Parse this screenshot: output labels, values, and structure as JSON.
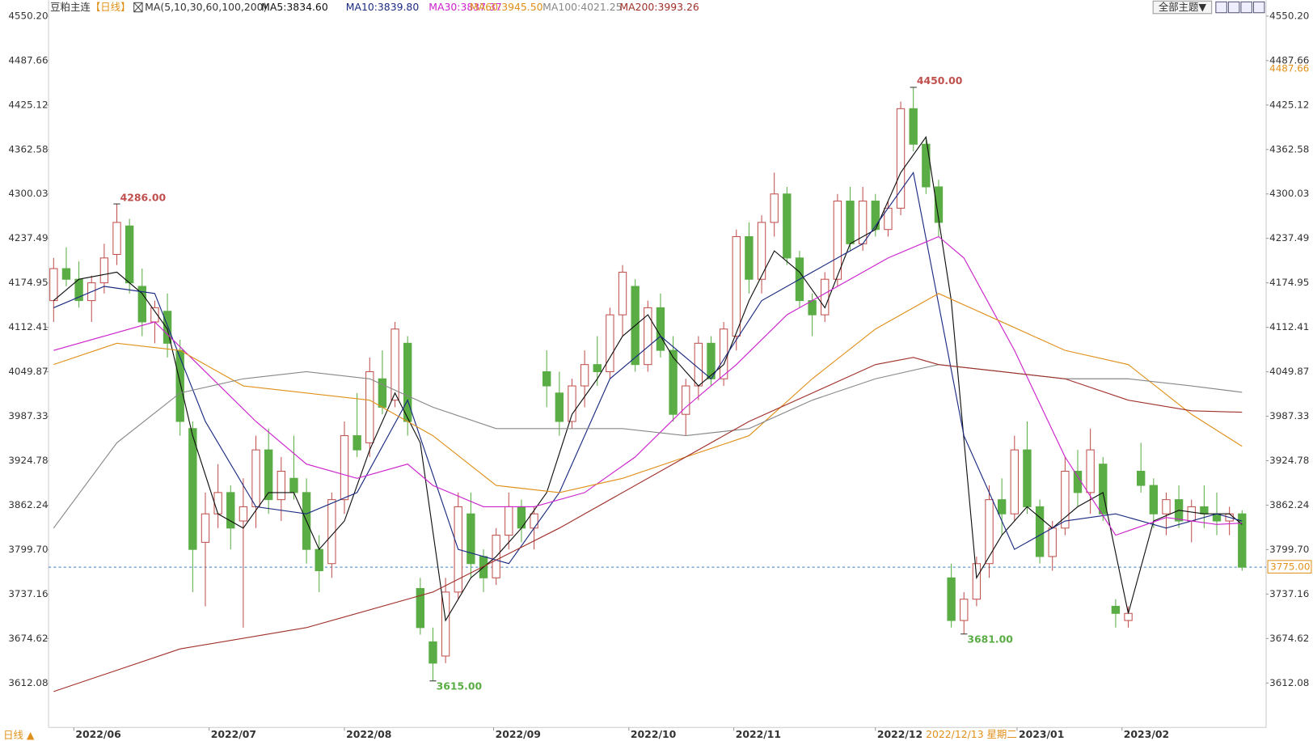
{
  "chart_data": {
    "type": "candlestick",
    "title": "豆粕主连",
    "period": "【日线】",
    "indicator": "MA(5,10,30,60,100,200)",
    "up_color": "#c0504d",
    "down_color": "#5aac44",
    "xlim": [
      -0.4,
      95.9
    ],
    "ylim": [
      3549.6,
      4572.6
    ],
    "yticks": [
      3612.08,
      3674.62,
      3737.16,
      {
        "value": 3799.7,
        "label": "3799.70"
      },
      3862.24,
      3924.78,
      3987.33,
      4049.87,
      4112.41,
      4174.95,
      4237.49,
      4300.03,
      4362.58,
      4425.12,
      4487.66,
      {
        "value": 4550.2,
        "label": "4550.20"
      }
    ],
    "xticks": [
      {
        "value": 1.6,
        "label": "2022/06"
      },
      {
        "value": 12.3,
        "label": "2022/07"
      },
      {
        "value": 23,
        "label": "2022/08"
      },
      {
        "value": 34.8,
        "label": "2022/09"
      },
      {
        "value": 45.5,
        "label": "2022/10"
      },
      {
        "value": 53.8,
        "label": "2022/11"
      },
      {
        "value": 65,
        "label": "2022/12"
      },
      {
        "value": 76.2,
        "label": "2023/01"
      },
      {
        "value": 84.5,
        "label": "2023/02"
      }
    ],
    "candles": [
      [
        4150,
        4210,
        4120,
        4195
      ],
      [
        4195,
        4225,
        4170,
        4180
      ],
      [
        4180,
        4205,
        4140,
        4150
      ],
      [
        4150,
        4185,
        4120,
        4175
      ],
      [
        4175,
        4230,
        4160,
        4210
      ],
      [
        4215,
        4286,
        4200,
        4260
      ],
      [
        4255,
        4265,
        4160,
        4175
      ],
      [
        4170,
        4195,
        4100,
        4120
      ],
      [
        4120,
        4150,
        4090,
        4140
      ],
      [
        4135,
        4160,
        4070,
        4090
      ],
      [
        4080,
        4095,
        3960,
        3980
      ],
      [
        3970,
        3980,
        3740,
        3800
      ],
      [
        3810,
        3880,
        3720,
        3850
      ],
      [
        3850,
        3920,
        3830,
        3880
      ],
      [
        3880,
        3890,
        3800,
        3830
      ],
      [
        3840,
        3900,
        3690,
        3860
      ],
      [
        3860,
        3960,
        3830,
        3940
      ],
      [
        3940,
        3970,
        3850,
        3870
      ],
      [
        3870,
        3930,
        3840,
        3910
      ],
      [
        3900,
        3960,
        3870,
        3880
      ],
      [
        3880,
        3900,
        3780,
        3800
      ],
      [
        3800,
        3820,
        3740,
        3770
      ],
      [
        3780,
        3880,
        3760,
        3870
      ],
      [
        3870,
        3980,
        3850,
        3960
      ],
      [
        3960,
        4020,
        3930,
        3940
      ],
      [
        3950,
        4070,
        3930,
        4050
      ],
      [
        4040,
        4080,
        3990,
        4000
      ],
      [
        4010,
        4120,
        4000,
        4110
      ],
      [
        4090,
        4100,
        3960,
        3980
      ],
      [
        3745,
        3760,
        3680,
        3690
      ],
      [
        3670,
        3690,
        3615,
        3640
      ],
      [
        3650,
        3760,
        3640,
        3740
      ],
      [
        3740,
        3880,
        3730,
        3860
      ],
      [
        3850,
        3880,
        3760,
        3780
      ],
      [
        3790,
        3800,
        3740,
        3760
      ],
      [
        3760,
        3830,
        3750,
        3820
      ],
      [
        3820,
        3880,
        3800,
        3860
      ],
      [
        3860,
        3870,
        3810,
        3830
      ],
      [
        3830,
        3860,
        3800,
        3850
      ],
      [
        4050,
        4080,
        4000,
        4030
      ],
      [
        4020,
        4050,
        3960,
        3980
      ],
      [
        3980,
        4040,
        3970,
        4030
      ],
      [
        4030,
        4080,
        4000,
        4060
      ],
      [
        4060,
        4100,
        4030,
        4050
      ],
      [
        4050,
        4140,
        4040,
        4130
      ],
      [
        4130,
        4200,
        4100,
        4190
      ],
      [
        4170,
        4180,
        4050,
        4060
      ],
      [
        4060,
        4150,
        4050,
        4140
      ],
      [
        4140,
        4160,
        4070,
        4080
      ],
      [
        4080,
        4100,
        3980,
        3990
      ],
      [
        3990,
        4040,
        3960,
        4030
      ],
      [
        4030,
        4100,
        4010,
        4090
      ],
      [
        4090,
        4100,
        4030,
        4040
      ],
      [
        4040,
        4120,
        4030,
        4110
      ],
      [
        4100,
        4250,
        4080,
        4240
      ],
      [
        4240,
        4260,
        4160,
        4180
      ],
      [
        4180,
        4270,
        4160,
        4260
      ],
      [
        4260,
        4330,
        4240,
        4300
      ],
      [
        4300,
        4310,
        4200,
        4210
      ],
      [
        4210,
        4220,
        4140,
        4150
      ],
      [
        4150,
        4160,
        4100,
        4130
      ],
      [
        4130,
        4190,
        4120,
        4180
      ],
      [
        4180,
        4300,
        4170,
        4290
      ],
      [
        4290,
        4310,
        4220,
        4230
      ],
      [
        4230,
        4310,
        4220,
        4290
      ],
      [
        4290,
        4300,
        4240,
        4250
      ],
      [
        4250,
        4290,
        4240,
        4280
      ],
      [
        4280,
        4430,
        4270,
        4420
      ],
      [
        4420,
        4450,
        4360,
        4370
      ],
      [
        4370,
        4380,
        4300,
        4310
      ],
      [
        4310,
        4320,
        4240,
        4260
      ],
      [
        3760,
        3780,
        3690,
        3700
      ],
      [
        3700,
        3740,
        3681,
        3730
      ],
      [
        3730,
        3790,
        3720,
        3780
      ],
      [
        3780,
        3890,
        3760,
        3870
      ],
      [
        3870,
        3900,
        3820,
        3850
      ],
      [
        3850,
        3960,
        3840,
        3940
      ],
      [
        3940,
        3980,
        3850,
        3860
      ],
      [
        3860,
        3870,
        3780,
        3790
      ],
      [
        3790,
        3840,
        3770,
        3830
      ],
      [
        3830,
        3930,
        3820,
        3910
      ],
      [
        3910,
        3940,
        3860,
        3880
      ],
      [
        3880,
        3970,
        3850,
        3940
      ],
      [
        3920,
        3930,
        3840,
        3850
      ],
      [
        3720,
        3730,
        3690,
        3710
      ],
      [
        3700,
        3720,
        3690,
        3710
      ],
      [
        3910,
        3950,
        3880,
        3890
      ],
      [
        3890,
        3900,
        3830,
        3850
      ],
      [
        3850,
        3880,
        3820,
        3870
      ],
      [
        3870,
        3890,
        3830,
        3840
      ],
      [
        3840,
        3870,
        3810,
        3860
      ],
      [
        3860,
        3890,
        3830,
        3850
      ],
      [
        3850,
        3880,
        3820,
        3840
      ],
      [
        3840,
        3860,
        3820,
        3850
      ],
      [
        3850,
        3855,
        3770,
        3775
      ]
    ],
    "series": [
      {
        "name": "MA5:3834.60",
        "color": "#111111",
        "x": [
          0,
          2,
          5,
          7,
          9,
          11,
          13,
          15,
          17,
          19,
          21,
          23,
          25,
          27,
          29,
          31,
          33,
          35,
          37,
          39,
          41,
          43,
          45,
          47,
          49,
          51,
          53,
          55,
          57,
          59,
          61,
          63,
          65,
          67,
          69,
          71,
          73,
          75,
          77,
          79,
          81,
          83,
          85,
          87,
          89,
          91,
          93,
          94
        ],
        "values": [
          4150,
          4180,
          4190,
          4160,
          4110,
          3960,
          3850,
          3830,
          3880,
          3880,
          3800,
          3840,
          3940,
          4020,
          3950,
          3700,
          3760,
          3790,
          3830,
          3880,
          3990,
          4040,
          4100,
          4130,
          4070,
          4030,
          4060,
          4150,
          4220,
          4190,
          4140,
          4230,
          4250,
          4330,
          4380,
          4150,
          3760,
          3820,
          3860,
          3830,
          3860,
          3880,
          3710,
          3840,
          3855,
          3850,
          3850,
          3835
        ]
      },
      {
        "name": "MA10:3839.80",
        "color": "#1a2a80",
        "x": [
          0,
          4,
          8,
          12,
          16,
          20,
          24,
          28,
          32,
          36,
          40,
          44,
          48,
          52,
          56,
          60,
          64,
          68,
          72,
          76,
          80,
          84,
          88,
          92,
          94
        ],
        "values": [
          4140,
          4170,
          4160,
          3980,
          3860,
          3850,
          3880,
          4010,
          3800,
          3780,
          3880,
          4040,
          4100,
          4040,
          4150,
          4190,
          4230,
          4330,
          3960,
          3800,
          3840,
          3850,
          3830,
          3850,
          3840
        ]
      },
      {
        "name": "MA30:3837.37",
        "color": "#cc22cc",
        "x": [
          0,
          4,
          8,
          12,
          16,
          20,
          24,
          28,
          30,
          34,
          38,
          42,
          46,
          50,
          54,
          58,
          62,
          66,
          70,
          72,
          76,
          80,
          84,
          88,
          92,
          94
        ],
        "values": [
          4080,
          4100,
          4120,
          4050,
          3980,
          3920,
          3900,
          3920,
          3890,
          3860,
          3860,
          3880,
          3930,
          4000,
          4060,
          4130,
          4170,
          4210,
          4240,
          4210,
          4080,
          3930,
          3820,
          3845,
          3835,
          3837
        ]
      },
      {
        "name": "MA60:3945.50",
        "color": "#e0901a",
        "x": [
          0,
          5,
          10,
          15,
          20,
          25,
          30,
          35,
          40,
          45,
          50,
          55,
          60,
          65,
          70,
          75,
          80,
          85,
          90,
          94
        ],
        "values": [
          4060,
          4090,
          4080,
          4030,
          4020,
          4010,
          3960,
          3890,
          3880,
          3900,
          3930,
          3960,
          4040,
          4110,
          4160,
          4120,
          4080,
          4060,
          3990,
          3945
        ]
      },
      {
        "name": "MA100:4021.25",
        "color": "#888888",
        "x": [
          0,
          5,
          10,
          15,
          20,
          25,
          30,
          35,
          40,
          45,
          50,
          55,
          60,
          65,
          70,
          75,
          80,
          85,
          90,
          94
        ],
        "values": [
          3830,
          3950,
          4020,
          4040,
          4050,
          4040,
          4000,
          3970,
          3970,
          3970,
          3960,
          3970,
          4010,
          4040,
          4060,
          4050,
          4040,
          4040,
          4030,
          4021
        ]
      },
      {
        "name": "MA200:3993.26",
        "color": "#a0302a",
        "x": [
          0,
          10,
          20,
          30,
          40,
          50,
          55,
          60,
          65,
          68,
          70,
          75,
          80,
          85,
          90,
          94
        ],
        "values": [
          3600,
          3660,
          3690,
          3740,
          3830,
          3930,
          3980,
          4020,
          4060,
          4070,
          4060,
          4050,
          4040,
          4010,
          3995,
          3993
        ]
      }
    ],
    "annotations": [
      {
        "x": 5,
        "value": 4286,
        "label": "4286.00",
        "color": "#c0504d"
      },
      {
        "x": 68,
        "value": 4450,
        "label": "4450.00",
        "color": "#c0504d"
      },
      {
        "x": 30,
        "value": 3615,
        "label": "3615.00",
        "color": "#5aac44"
      },
      {
        "x": 72,
        "value": 3681,
        "label": "3681.00",
        "color": "#5aac44"
      }
    ],
    "last_price": {
      "value": 3775,
      "label": "3775.00"
    },
    "right_marker": {
      "value": 4487.66,
      "label": "4487.66"
    },
    "cursor_date": "2022/12/13 星期二",
    "period_button": "日线 ▲",
    "theme_button": "全部主题▼"
  }
}
